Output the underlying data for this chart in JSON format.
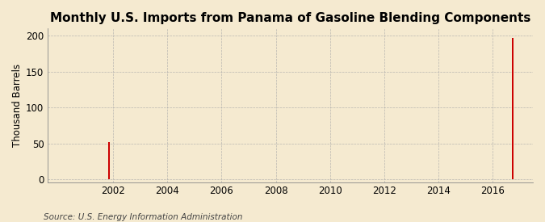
{
  "title": "Monthly U.S. Imports from Panama of Gasoline Blending Components",
  "ylabel": "Thousand Barrels",
  "source": "Source: U.S. Energy Information Administration",
  "background_color": "#f5ead0",
  "bar_color": "#cc0000",
  "xlim": [
    1999.58,
    2017.5
  ],
  "ylim": [
    -4,
    210
  ],
  "yticks": [
    0,
    50,
    100,
    150,
    200
  ],
  "xticks": [
    2002,
    2004,
    2006,
    2008,
    2010,
    2012,
    2014,
    2016
  ],
  "bar_data": [
    [
      2000.0,
      0
    ],
    [
      2000.083,
      0
    ],
    [
      2000.167,
      0
    ],
    [
      2000.25,
      0
    ],
    [
      2000.333,
      0
    ],
    [
      2000.417,
      0
    ],
    [
      2000.5,
      0
    ],
    [
      2000.583,
      0
    ],
    [
      2000.667,
      0
    ],
    [
      2000.75,
      0
    ],
    [
      2000.833,
      0
    ],
    [
      2000.917,
      0
    ],
    [
      2001.0,
      0
    ],
    [
      2001.083,
      0
    ],
    [
      2001.167,
      0
    ],
    [
      2001.25,
      0
    ],
    [
      2001.333,
      0
    ],
    [
      2001.417,
      0
    ],
    [
      2001.5,
      0
    ],
    [
      2001.583,
      0
    ],
    [
      2001.667,
      0
    ],
    [
      2001.75,
      0
    ],
    [
      2001.833,
      52
    ],
    [
      2001.917,
      0
    ],
    [
      2002.0,
      0
    ],
    [
      2002.083,
      0
    ],
    [
      2002.167,
      0
    ],
    [
      2002.25,
      0
    ],
    [
      2002.333,
      0
    ],
    [
      2002.417,
      0
    ],
    [
      2002.5,
      0
    ],
    [
      2002.583,
      0
    ],
    [
      2002.667,
      0
    ],
    [
      2002.75,
      0
    ],
    [
      2002.833,
      0
    ],
    [
      2002.917,
      0
    ],
    [
      2003.0,
      0
    ],
    [
      2004.0,
      0
    ],
    [
      2005.0,
      0
    ],
    [
      2006.0,
      0
    ],
    [
      2007.0,
      0
    ],
    [
      2008.0,
      0
    ],
    [
      2009.0,
      0
    ],
    [
      2010.0,
      0
    ],
    [
      2011.0,
      0
    ],
    [
      2012.0,
      0
    ],
    [
      2013.0,
      0
    ],
    [
      2014.0,
      0
    ],
    [
      2015.0,
      0
    ],
    [
      2016.0,
      0
    ],
    [
      2016.083,
      0
    ],
    [
      2016.167,
      0
    ],
    [
      2016.25,
      0
    ],
    [
      2016.333,
      0
    ],
    [
      2016.417,
      0
    ],
    [
      2016.5,
      0
    ],
    [
      2016.583,
      0
    ],
    [
      2016.667,
      0
    ],
    [
      2016.75,
      197
    ],
    [
      2016.833,
      0
    ],
    [
      2016.917,
      0
    ],
    [
      2017.0,
      0
    ]
  ],
  "title_fontsize": 11,
  "label_fontsize": 8.5,
  "tick_fontsize": 8.5,
  "source_fontsize": 7.5,
  "bar_width": 0.07
}
